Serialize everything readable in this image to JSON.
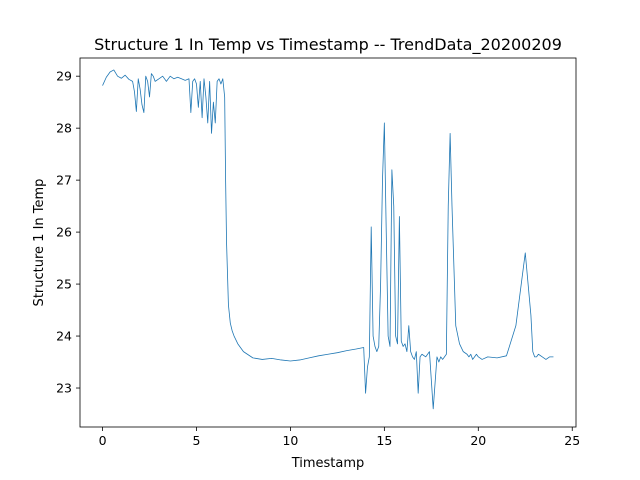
{
  "chart_data": {
    "type": "line",
    "title": "Structure 1 In Temp vs Timestamp -- TrendData_20200209",
    "xlabel": "Timestamp",
    "ylabel": "Structure 1 In Temp",
    "xlim": [
      -1.2,
      25.2
    ],
    "ylim": [
      22.25,
      29.35
    ],
    "xticks": [
      0,
      5,
      10,
      15,
      20,
      25
    ],
    "xtick_labels": [
      "0",
      "5",
      "10",
      "15",
      "20",
      "25"
    ],
    "yticks": [
      23,
      24,
      25,
      26,
      27,
      28,
      29
    ],
    "ytick_labels": [
      "23",
      "24",
      "25",
      "26",
      "27",
      "28",
      "29"
    ],
    "grid": false,
    "legend": "none",
    "line_color": "#1f77b4",
    "series": [
      {
        "x": [
          0,
          0.2,
          0.4,
          0.6,
          0.8,
          1.0,
          1.2,
          1.4,
          1.6,
          1.7,
          1.8,
          1.9,
          2.0,
          2.1,
          2.2,
          2.3,
          2.4,
          2.5,
          2.6,
          2.7,
          2.8,
          3.0,
          3.2,
          3.4,
          3.6,
          3.8,
          4.0,
          4.2,
          4.4,
          4.6,
          4.7,
          4.8,
          4.9,
          5.0,
          5.1,
          5.2,
          5.3,
          5.4,
          5.5,
          5.6,
          5.7,
          5.8,
          5.9,
          6.0,
          6.1,
          6.2,
          6.3,
          6.4,
          6.5,
          6.55,
          6.6,
          6.7,
          6.8,
          6.9,
          7.0,
          7.2,
          7.5,
          8.0,
          8.5,
          9.0,
          9.5,
          10.0,
          10.5,
          11.0,
          11.5,
          12.0,
          12.5,
          13.0,
          13.5,
          13.9,
          14.0,
          14.1,
          14.2,
          14.3,
          14.4,
          14.5,
          14.6,
          14.7,
          14.8,
          14.9,
          15.0,
          15.1,
          15.2,
          15.3,
          15.4,
          15.5,
          15.6,
          15.7,
          15.8,
          15.9,
          16.0,
          16.1,
          16.2,
          16.3,
          16.4,
          16.5,
          16.6,
          16.7,
          16.8,
          16.9,
          17.0,
          17.2,
          17.4,
          17.6,
          17.8,
          17.9,
          18.0,
          18.1,
          18.2,
          18.3,
          18.4,
          18.5,
          18.6,
          18.8,
          19.0,
          19.2,
          19.4,
          19.5,
          19.6,
          19.7,
          19.8,
          19.9,
          20.0,
          20.2,
          20.5,
          21.0,
          21.5,
          22.0,
          22.5,
          22.8,
          22.9,
          23.0,
          23.1,
          23.2,
          23.4,
          23.6,
          23.8,
          24.0
        ],
        "y": [
          28.82,
          28.98,
          29.08,
          29.12,
          29.0,
          28.96,
          29.02,
          28.94,
          28.9,
          28.7,
          28.32,
          28.95,
          28.75,
          28.45,
          28.3,
          29.0,
          28.9,
          28.6,
          29.05,
          29.0,
          28.9,
          28.95,
          29.0,
          28.9,
          29.0,
          28.95,
          28.98,
          28.95,
          28.92,
          28.95,
          28.3,
          28.9,
          28.95,
          28.85,
          28.4,
          28.9,
          28.2,
          28.95,
          28.6,
          28.1,
          28.9,
          27.9,
          28.5,
          28.1,
          28.9,
          28.95,
          28.85,
          28.95,
          28.6,
          27.0,
          25.8,
          24.6,
          24.25,
          24.1,
          24.0,
          23.85,
          23.7,
          23.58,
          23.55,
          23.57,
          23.54,
          23.52,
          23.54,
          23.58,
          23.62,
          23.65,
          23.68,
          23.72,
          23.75,
          23.78,
          22.9,
          23.4,
          23.6,
          26.1,
          24.0,
          23.8,
          23.7,
          23.8,
          25.0,
          27.0,
          28.1,
          26.0,
          24.0,
          23.8,
          27.2,
          26.5,
          24.0,
          23.85,
          26.3,
          23.9,
          23.8,
          23.85,
          23.7,
          24.2,
          23.7,
          23.6,
          23.55,
          23.7,
          22.9,
          23.6,
          23.65,
          23.6,
          23.7,
          22.6,
          23.6,
          23.5,
          23.6,
          23.55,
          23.6,
          23.65,
          26.5,
          27.9,
          26.5,
          24.2,
          23.85,
          23.7,
          23.65,
          23.6,
          23.65,
          23.55,
          23.6,
          23.65,
          23.6,
          23.55,
          23.6,
          23.58,
          23.62,
          24.2,
          25.6,
          24.4,
          23.7,
          23.6,
          23.6,
          23.65,
          23.6,
          23.55,
          23.6,
          23.6
        ]
      }
    ]
  }
}
